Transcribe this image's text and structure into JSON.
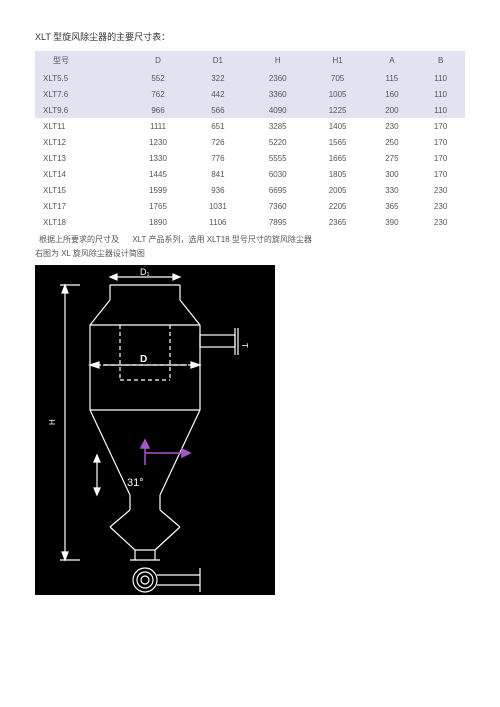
{
  "title": "XLT 型旋风除尘器的主要尺寸表：",
  "table": {
    "columns": [
      "型号",
      "D",
      "D1",
      "H",
      "H1",
      "A",
      "B"
    ],
    "rows": [
      [
        "XLT5.5",
        "552",
        "322",
        "2360",
        "705",
        "115",
        "110"
      ],
      [
        "XLT7.6",
        "762",
        "442",
        "3360",
        "1005",
        "160",
        "110"
      ],
      [
        "XLT9.6",
        "966",
        "566",
        "4090",
        "1225",
        "200",
        "110"
      ],
      [
        "XLT11",
        "1111",
        "651",
        "3285",
        "1405",
        "230",
        "170"
      ],
      [
        "XLT12",
        "1230",
        "726",
        "5220",
        "1565",
        "250",
        "170"
      ],
      [
        "XLT13",
        "1330",
        "776",
        "5555",
        "1665",
        "275",
        "170"
      ],
      [
        "XLT14",
        "1445",
        "841",
        "6030",
        "1805",
        "300",
        "170"
      ],
      [
        "XLT15",
        "1599",
        "936",
        "6695",
        "2005",
        "330",
        "230"
      ],
      [
        "XLT17",
        "1765",
        "1031",
        "7360",
        "2205",
        "365",
        "230"
      ],
      [
        "XLT18",
        "1890",
        "1106",
        "7895",
        "2365",
        "390",
        "230"
      ]
    ],
    "shaded_row_indices": [
      0,
      1,
      2
    ],
    "header_bg": "#e2e2f0",
    "shaded_bg": "#e2e2f0"
  },
  "note_line1a": "根据上所要求的尺寸及",
  "note_line1b": "XLT 产品系列，选用 XLT18 型号尺寸的旋风除尘器",
  "note_line2": "右图为 XL 旋风除尘器设计简图",
  "diagram": {
    "background": "#000000",
    "stroke": "#ffffff",
    "arrow_color": "#aa55cc",
    "labels": {
      "D": "D",
      "D1": "D₁",
      "angle": "31°",
      "T": "T",
      "H": "H"
    }
  }
}
